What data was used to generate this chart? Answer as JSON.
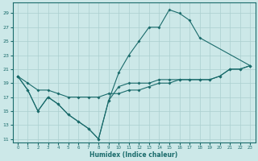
{
  "xlabel": "Humidex (Indice chaleur)",
  "background_color": "#cce8e8",
  "grid_color": "#aacfcf",
  "line_color": "#1a6b6b",
  "xlim": [
    -0.5,
    23.5
  ],
  "ylim": [
    10.5,
    30.5
  ],
  "xticks": [
    0,
    1,
    2,
    3,
    4,
    5,
    6,
    7,
    8,
    9,
    10,
    11,
    12,
    13,
    14,
    15,
    16,
    17,
    18,
    19,
    20,
    21,
    22,
    23
  ],
  "yticks": [
    11,
    13,
    15,
    17,
    19,
    21,
    23,
    25,
    27,
    29
  ],
  "line1_x": [
    0,
    1,
    2,
    3,
    4,
    5,
    6,
    7,
    8,
    9,
    10,
    11,
    12,
    13,
    14,
    15,
    16,
    17,
    18,
    23
  ],
  "line1_y": [
    20.0,
    18.0,
    15.0,
    17.0,
    16.0,
    14.5,
    13.5,
    12.5,
    11.0,
    16.5,
    20.5,
    23.0,
    25.0,
    27.0,
    27.0,
    29.5,
    29.0,
    28.0,
    25.5,
    21.5
  ],
  "line2_x": [
    0,
    1,
    2,
    3,
    4,
    5,
    6,
    7,
    8,
    9,
    10,
    11,
    12,
    13,
    14,
    15,
    16,
    17,
    18,
    19,
    20,
    21,
    22,
    23
  ],
  "line2_y": [
    20.0,
    18.0,
    15.0,
    17.0,
    16.0,
    14.5,
    13.5,
    12.5,
    11.0,
    16.5,
    18.5,
    19.0,
    19.0,
    19.0,
    19.5,
    19.5,
    19.5,
    19.5,
    19.5,
    19.5,
    20.0,
    21.0,
    21.0,
    21.5
  ],
  "line3_x": [
    0,
    1,
    2,
    3,
    4,
    5,
    6,
    7,
    8,
    9,
    10,
    11,
    12,
    13,
    14,
    15,
    16,
    17,
    18,
    19,
    20,
    21,
    22,
    23
  ],
  "line3_y": [
    20.0,
    19.0,
    18.0,
    18.0,
    17.5,
    17.0,
    17.0,
    17.0,
    17.0,
    17.5,
    17.5,
    18.0,
    18.0,
    18.5,
    19.0,
    19.0,
    19.5,
    19.5,
    19.5,
    19.5,
    20.0,
    21.0,
    21.0,
    21.5
  ]
}
